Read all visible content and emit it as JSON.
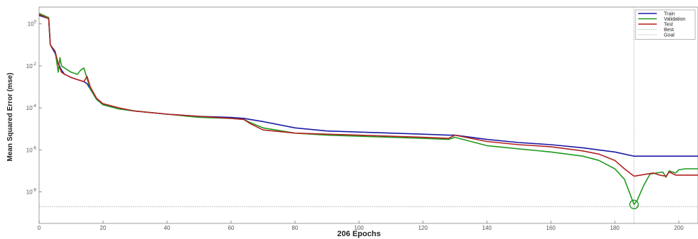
{
  "chart_data": {
    "type": "line",
    "xlabel": "206 Epochs",
    "ylabel": "Mean Squared Error  (mse)",
    "xlim": [
      0,
      206
    ],
    "ylim_log10": [
      -9.5,
      0.8
    ],
    "yscale": "log",
    "grid": false,
    "legend_placement": "top-right",
    "xticks": [
      0,
      20,
      40,
      60,
      80,
      100,
      120,
      140,
      160,
      180,
      200
    ],
    "yticks": [
      {
        "exp": 0,
        "label": "10^0"
      },
      {
        "exp": -2,
        "label": "10^-2"
      },
      {
        "exp": -4,
        "label": "10^-4"
      },
      {
        "exp": -6,
        "label": "10^-6"
      },
      {
        "exp": -8,
        "label": "10^-8"
      }
    ],
    "series": [
      {
        "name": "Train",
        "color": "#1a1aa6",
        "x": [
          0,
          3,
          3.5,
          5,
          6,
          7,
          8,
          10,
          12,
          14,
          15,
          16,
          18,
          20,
          25,
          30,
          40,
          50,
          60,
          64,
          66,
          70,
          80,
          90,
          100,
          110,
          120,
          128,
          130,
          140,
          150,
          160,
          170,
          175,
          180,
          186,
          190,
          200,
          206
        ],
        "log10_y": [
          0.4,
          0.25,
          -1.0,
          -1.4,
          -1.9,
          -2.2,
          -2.4,
          -2.55,
          -2.65,
          -2.75,
          -2.85,
          -3.1,
          -3.6,
          -3.85,
          -4.05,
          -4.15,
          -4.3,
          -4.4,
          -4.45,
          -4.5,
          -4.55,
          -4.65,
          -4.95,
          -5.1,
          -5.15,
          -5.2,
          -5.25,
          -5.3,
          -5.3,
          -5.5,
          -5.65,
          -5.75,
          -5.9,
          -6.0,
          -6.1,
          -6.3,
          -6.3,
          -6.3,
          -6.3
        ]
      },
      {
        "name": "Validation",
        "color": "#1f9a1f",
        "x": [
          0,
          3,
          3.5,
          5,
          6,
          6.5,
          7,
          8,
          10,
          12,
          13,
          14,
          15,
          16,
          18,
          20,
          25,
          30,
          40,
          50,
          60,
          64,
          66,
          70,
          80,
          90,
          100,
          110,
          120,
          128,
          130,
          140,
          150,
          160,
          170,
          175,
          180,
          183,
          185,
          186,
          187,
          189,
          191,
          193,
          195,
          196,
          197,
          199,
          200,
          202,
          206
        ],
        "log10_y": [
          0.5,
          0.3,
          -1.0,
          -1.3,
          -2.3,
          -1.6,
          -2.0,
          -2.1,
          -2.3,
          -2.4,
          -2.2,
          -2.1,
          -2.6,
          -3.1,
          -3.6,
          -3.85,
          -4.05,
          -4.15,
          -4.3,
          -4.45,
          -4.5,
          -4.55,
          -4.7,
          -4.95,
          -5.2,
          -5.3,
          -5.35,
          -5.4,
          -5.45,
          -5.5,
          -5.4,
          -5.8,
          -5.95,
          -6.1,
          -6.3,
          -6.5,
          -6.9,
          -7.4,
          -8.2,
          -8.6,
          -8.4,
          -7.7,
          -7.15,
          -7.1,
          -7.05,
          -7.3,
          -7.0,
          -7.1,
          -6.95,
          -6.9,
          -6.9
        ]
      },
      {
        "name": "Test",
        "color": "#b22222",
        "x": [
          0,
          3,
          3.5,
          5,
          6,
          7,
          8,
          10,
          12,
          14,
          15,
          16,
          18,
          20,
          25,
          30,
          40,
          50,
          60,
          64,
          66,
          70,
          80,
          90,
          100,
          110,
          120,
          128,
          130,
          140,
          150,
          160,
          170,
          175,
          180,
          183,
          186,
          188,
          190,
          192,
          194,
          196,
          197,
          199,
          200,
          202,
          206
        ],
        "log10_y": [
          0.45,
          0.25,
          -1.0,
          -1.3,
          -1.9,
          -2.3,
          -2.4,
          -2.55,
          -2.65,
          -2.75,
          -2.5,
          -3.0,
          -3.55,
          -3.8,
          -4.0,
          -4.15,
          -4.3,
          -4.4,
          -4.5,
          -4.55,
          -4.75,
          -5.05,
          -5.2,
          -5.25,
          -5.3,
          -5.35,
          -5.4,
          -5.45,
          -5.3,
          -5.6,
          -5.75,
          -5.85,
          -6.05,
          -6.2,
          -6.5,
          -6.9,
          -7.25,
          -7.2,
          -7.15,
          -7.1,
          -7.2,
          -7.25,
          -7.05,
          -7.2,
          -7.2,
          -7.2,
          -7.2
        ]
      },
      {
        "name": "Best",
        "color": "#a0a0a0",
        "style": "dotted",
        "vertical_x": 186
      },
      {
        "name": "Goal",
        "color": "#a0a0a0",
        "style": "dotted",
        "horizontal_log10_y": -8.7
      }
    ],
    "best_marker": {
      "x": 186,
      "log10_y": -8.6,
      "color": "#1f9a1f"
    }
  }
}
